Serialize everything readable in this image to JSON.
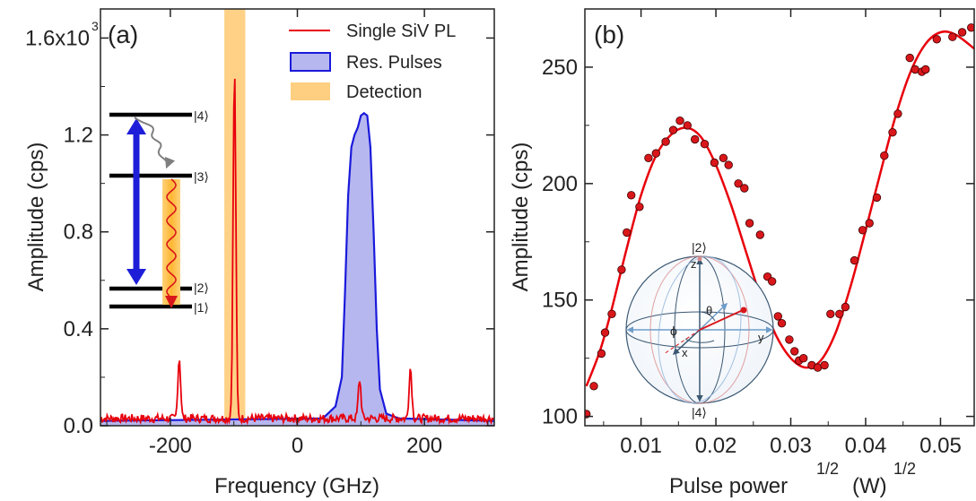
{
  "chart_data": [
    {
      "type": "line",
      "panel_label": "(a)",
      "xlabel": "Frequency (GHz)",
      "ylabel": "Amplitude (cps)",
      "xlim": [
        -310,
        310
      ],
      "ylim": [
        0,
        1.72
      ],
      "x_ticks": [
        -200,
        0,
        200
      ],
      "x_tick_labels": [
        "-200",
        "0",
        "200"
      ],
      "y_ticks": [
        0,
        0.4,
        0.8,
        1.2,
        1.6
      ],
      "y_tick_labels": [
        "0.0",
        "0.4",
        "0.8",
        "1.2",
        "1.6x10"
      ],
      "y_exponent": "3",
      "legend": [
        "Single SiV PL",
        "Res. Pulses",
        "Detection"
      ],
      "legend_position": "top-right",
      "detection_band": [
        -115,
        -82
      ],
      "series": [
        {
          "name": "Single SiV PL",
          "color": "#e8000b",
          "peaks": [
            {
              "x": -186,
              "height": 0.25
            },
            {
              "x": -99,
              "height": 1.43
            },
            {
              "x": 98,
              "height": 0.16
            },
            {
              "x": 178,
              "height": 0.21
            }
          ],
          "baseline": 0.03
        },
        {
          "name": "Res. Pulses",
          "color": "#1a1adb",
          "fill": "#b8b8f0",
          "points": [
            [
              -310,
              0.02
            ],
            [
              40,
              0.03
            ],
            [
              60,
              0.08
            ],
            [
              70,
              0.2
            ],
            [
              75,
              0.55
            ],
            [
              80,
              0.95
            ],
            [
              85,
              1.15
            ],
            [
              90,
              1.2
            ],
            [
              95,
              1.23
            ],
            [
              100,
              1.28
            ],
            [
              105,
              1.29
            ],
            [
              110,
              1.28
            ],
            [
              115,
              1.15
            ],
            [
              120,
              0.8
            ],
            [
              125,
              0.4
            ],
            [
              130,
              0.15
            ],
            [
              140,
              0.05
            ],
            [
              160,
              0.03
            ],
            [
              310,
              0.02
            ]
          ]
        }
      ],
      "inset_levels": [
        "|4⟩",
        "|3⟩",
        "|2⟩",
        "|1⟩"
      ]
    },
    {
      "type": "scatter",
      "panel_label": "(b)",
      "xlabel": "Pulse power",
      "xlabel_sup1": "1/2",
      "xlabel_unit": "(W)",
      "xlabel_sup2": "1/2",
      "ylabel": "Amplitude (cps)",
      "xlim": [
        0.0025,
        0.0545
      ],
      "ylim": [
        96,
        275
      ],
      "x_ticks": [
        0.01,
        0.02,
        0.03,
        0.04,
        0.05
      ],
      "x_tick_labels": [
        "0.01",
        "0.02",
        "0.03",
        "0.04",
        "0.05"
      ],
      "y_ticks": [
        100,
        150,
        200,
        250
      ],
      "y_tick_labels": [
        "100",
        "150",
        "200",
        "250"
      ],
      "series": [
        {
          "name": "data",
          "color": "#d9171b",
          "points": [
            [
              0.0027,
              101
            ],
            [
              0.0037,
              113
            ],
            [
              0.0047,
              127
            ],
            [
              0.0052,
              136
            ],
            [
              0.0061,
              144
            ],
            [
              0.0074,
              163
            ],
            [
              0.0081,
              179
            ],
            [
              0.0087,
              195
            ],
            [
              0.0098,
              190
            ],
            [
              0.011,
              211
            ],
            [
              0.012,
              213
            ],
            [
              0.0133,
              218
            ],
            [
              0.0143,
              223
            ],
            [
              0.0152,
              227
            ],
            [
              0.0162,
              225
            ],
            [
              0.0172,
              219
            ],
            [
              0.0185,
              217
            ],
            [
              0.0198,
              209
            ],
            [
              0.021,
              211
            ],
            [
              0.0217,
              208
            ],
            [
              0.023,
              200
            ],
            [
              0.0238,
              198
            ],
            [
              0.0245,
              183
            ],
            [
              0.0259,
              178
            ],
            [
              0.0269,
              160
            ],
            [
              0.0275,
              158
            ],
            [
              0.0283,
              143
            ],
            [
              0.0288,
              140
            ],
            [
              0.0298,
              133
            ],
            [
              0.0305,
              128
            ],
            [
              0.0311,
              124
            ],
            [
              0.0317,
              125
            ],
            [
              0.0328,
              122
            ],
            [
              0.0336,
              121
            ],
            [
              0.0345,
              122
            ],
            [
              0.0353,
              144
            ],
            [
              0.0365,
              144
            ],
            [
              0.0373,
              147
            ],
            [
              0.0385,
              167
            ],
            [
              0.0396,
              180
            ],
            [
              0.0405,
              183
            ],
            [
              0.0415,
              194
            ],
            [
              0.0425,
              212
            ],
            [
              0.0436,
              222
            ],
            [
              0.0443,
              230
            ],
            [
              0.0459,
              254
            ],
            [
              0.0466,
              249
            ],
            [
              0.0475,
              248
            ],
            [
              0.048,
              249
            ],
            [
              0.0495,
              262
            ],
            [
              0.0516,
              263
            ],
            [
              0.0529,
              265
            ],
            [
              0.0541,
              267
            ]
          ]
        },
        {
          "name": "fit",
          "color": "#e8000b",
          "points": [
            [
              0.0027,
              113
            ],
            [
              0.0045,
              128
            ],
            [
              0.006,
              145
            ],
            [
              0.008,
              171
            ],
            [
              0.01,
              195
            ],
            [
              0.012,
              212
            ],
            [
              0.014,
              221
            ],
            [
              0.016,
              224
            ],
            [
              0.018,
              220
            ],
            [
              0.02,
              208
            ],
            [
              0.022,
              191
            ],
            [
              0.024,
              171
            ],
            [
              0.026,
              151
            ],
            [
              0.028,
              135
            ],
            [
              0.03,
              125
            ],
            [
              0.032,
              121
            ],
            [
              0.034,
              124
            ],
            [
              0.036,
              136
            ],
            [
              0.038,
              156
            ],
            [
              0.04,
              180
            ],
            [
              0.042,
              205
            ],
            [
              0.044,
              229
            ],
            [
              0.046,
              248
            ],
            [
              0.048,
              260
            ],
            [
              0.05,
              265
            ],
            [
              0.052,
              264
            ],
            [
              0.0545,
              258
            ]
          ]
        }
      ],
      "inset": {
        "labels": {
          "top": "|2⟩",
          "bottom": "|4⟩",
          "z": "z",
          "x": "x",
          "y": "y",
          "theta": "θ",
          "phi": "ϕ"
        }
      }
    }
  ]
}
